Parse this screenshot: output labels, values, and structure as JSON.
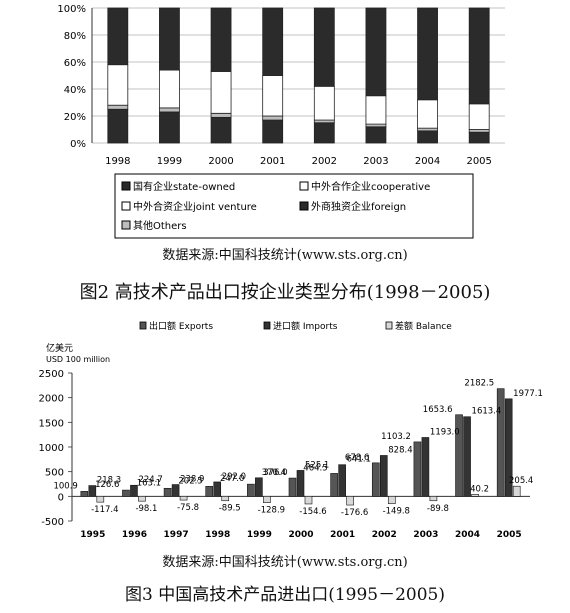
{
  "figures": [
    {
      "caption": "图2   高技术产品出口按企业类型分布(1998－2005)",
      "source": "数据来源:中国科技统计(www.sts.org.cn)"
    },
    {
      "caption": "图3   中国高技术产品进出口(1995－2005)",
      "source": "数据来源:中国科技统计(www.sts.org.cn)"
    }
  ],
  "chart_data": [
    {
      "type": "bar",
      "stacked": true,
      "categories": [
        "1998",
        "1999",
        "2000",
        "2001",
        "2002",
        "2003",
        "2004",
        "2005"
      ],
      "y_ticks": [
        "0%",
        "20%",
        "40%",
        "60%",
        "80%",
        "100%"
      ],
      "ylim": [
        0,
        100
      ],
      "legend_position": "bottom",
      "series": [
        {
          "name": "国有企业state-owned",
          "color": "#2b2b2b",
          "values": [
            25,
            23,
            19,
            17,
            15,
            12,
            9,
            8
          ]
        },
        {
          "name": "其他Others",
          "color": "#bdbdbd",
          "values": [
            3,
            3,
            3,
            3,
            2,
            2,
            2,
            2
          ]
        },
        {
          "name": "中外合资企业joint venture",
          "color": "#ffffff",
          "values": [
            30,
            28,
            31,
            30,
            25,
            21,
            21,
            19
          ]
        },
        {
          "name": "外商独资企业foreign",
          "color": "#2b2b2b",
          "values": [
            42,
            46,
            47,
            50,
            58,
            65,
            68,
            71
          ]
        }
      ],
      "legend": [
        {
          "name": "国有企业state-owned",
          "swatch": "#2b2b2b"
        },
        {
          "name": "中外合作企业cooperative",
          "swatch": "#ffffff"
        },
        {
          "name": "中外合资企业joint venture",
          "swatch": "#ffffff"
        },
        {
          "name": "外商独资企业foreign",
          "swatch": "#2b2b2b"
        },
        {
          "name": "其他Others",
          "swatch": "#bdbdbd"
        }
      ]
    },
    {
      "type": "bar",
      "categories": [
        "1995",
        "1996",
        "1997",
        "1998",
        "1999",
        "2000",
        "2001",
        "2002",
        "2003",
        "2004",
        "2005"
      ],
      "ylabel": "亿美元",
      "ylabel2": "USD 100 million",
      "ylim": [
        -500,
        2500
      ],
      "y_ticks": [
        "-500",
        "0",
        "500",
        "1000",
        "1500",
        "2000",
        "2500"
      ],
      "legend_position": "top",
      "series": [
        {
          "name": "出口额 Exports",
          "color": "#555555",
          "values": [
            100.9,
            126.6,
            163.1,
            202.5,
            247.0,
            370.4,
            464.5,
            678.6,
            1103.2,
            1653.6,
            2182.5
          ]
        },
        {
          "name": "进口额 Imports",
          "color": "#333333",
          "values": [
            218.3,
            224.7,
            238.9,
            292.0,
            376.0,
            525.1,
            641.1,
            828.4,
            1193.0,
            1613.4,
            1977.1
          ]
        },
        {
          "name": "差额 Balance",
          "color": "#d8d8d8",
          "values": [
            -117.4,
            -98.1,
            -75.8,
            -89.5,
            -128.9,
            -154.6,
            -176.6,
            -149.8,
            -89.8,
            40.2,
            205.4
          ]
        }
      ],
      "data_labels": {
        "exports": [
          "100.9",
          "126.6",
          "163.1",
          "202.5",
          "247.0",
          "370.4",
          "464.5",
          "678.6",
          "1103.2",
          "1653.6",
          "2182.5"
        ],
        "imports": [
          "218.3",
          "224.7",
          "238.9",
          "292.0",
          "376.0",
          "525.1",
          "641.1",
          "828.4",
          "1193.0",
          "1613.4",
          "1977.1"
        ],
        "balance": [
          "-117.4",
          "-98.1",
          "-75.8",
          "-89.5",
          "-128.9",
          "-154.6",
          "-176.6",
          "-149.8",
          "-89.8",
          "40.2",
          "205.4"
        ]
      }
    }
  ]
}
